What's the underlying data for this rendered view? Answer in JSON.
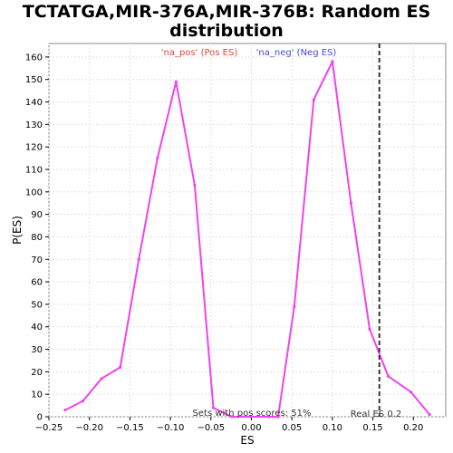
{
  "chart_data": {
    "type": "line",
    "title_line1": "TCTATGA,MIR-376A,MIR-376B: Random ES",
    "title_line2": "distribution",
    "xlabel": "ES",
    "ylabel": "P(ES)",
    "xlim": [
      -0.25,
      0.24
    ],
    "ylim": [
      0,
      166
    ],
    "x_ticks": [
      -0.25,
      -0.2,
      -0.15,
      -0.1,
      -0.05,
      0.0,
      0.05,
      0.1,
      0.15,
      0.2
    ],
    "x_tick_labels": [
      "−0.25",
      "−0.20",
      "−0.15",
      "−0.10",
      "−0.05",
      "0.00",
      "0.05",
      "0.10",
      "0.15",
      "0.20"
    ],
    "y_ticks": [
      0,
      10,
      20,
      30,
      40,
      50,
      60,
      70,
      80,
      90,
      100,
      110,
      120,
      130,
      140,
      150,
      160
    ],
    "grid": true,
    "legend": [
      {
        "label": "'na_pos' (Pos ES)",
        "color": "#e0463c"
      },
      {
        "label": "'na_neg' (Neg ES)",
        "color": "#4a4adc"
      }
    ],
    "series": [
      {
        "color": "#ee44ee",
        "x": [
          -0.23,
          -0.208,
          -0.185,
          -0.162,
          -0.139,
          -0.116,
          -0.093,
          -0.07,
          -0.047,
          -0.024,
          -0.001,
          0.022,
          0.033,
          0.053,
          0.077,
          0.1,
          0.123,
          0.146,
          0.169,
          0.197,
          0.22
        ],
        "y": [
          3,
          7,
          17,
          22,
          70,
          115,
          149,
          103,
          4,
          0,
          0,
          0,
          0,
          49,
          141,
          158,
          95,
          39,
          18,
          11,
          1
        ]
      }
    ],
    "real_es": {
      "x": 0.158,
      "label": "Real ES 0.2",
      "color": "#333333"
    },
    "annotation": "Sets with pos scores: 51%"
  }
}
